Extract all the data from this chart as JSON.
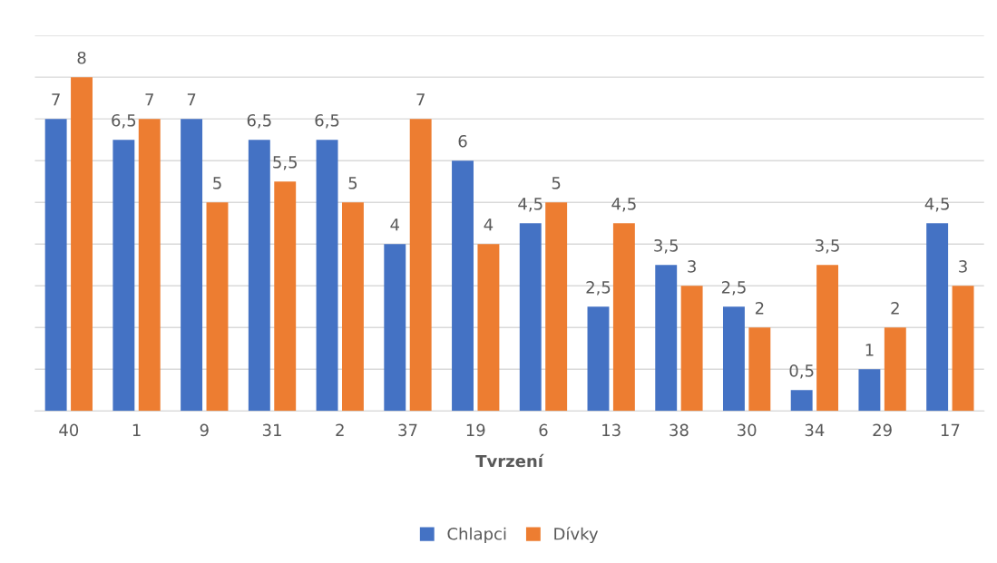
{
  "chart_data": {
    "type": "bar",
    "xlabel": "Tvrzení",
    "categories": [
      "40",
      "1",
      "9",
      "31",
      "2",
      "37",
      "19",
      "6",
      "13",
      "38",
      "30",
      "34",
      "29",
      "17"
    ],
    "series": [
      {
        "name": "Chlapci",
        "color": "#4472c4",
        "values": [
          7,
          6.5,
          7,
          6.5,
          6.5,
          4,
          6,
          4.5,
          2.5,
          3.5,
          2.5,
          0.5,
          1,
          4.5
        ],
        "value_labels": [
          "7",
          "6,5",
          "7",
          "6,5",
          "6,5",
          "4",
          "6",
          "4,5",
          "2,5",
          "3,5",
          "2,5",
          "0,5",
          "1",
          "4,5"
        ]
      },
      {
        "name": "Dívky",
        "color": "#ed7d31",
        "values": [
          8,
          7,
          5,
          5.5,
          5,
          7,
          4,
          5,
          4.5,
          3,
          2,
          3.5,
          2,
          3
        ],
        "value_labels": [
          "8",
          "7",
          "5",
          "5,5",
          "5",
          "7",
          "4",
          "5",
          "4,5",
          "3",
          "2",
          "3,5",
          "2",
          "3"
        ]
      }
    ],
    "ylim": [
      0,
      9
    ],
    "yticks": [
      {
        "value": 0,
        "label": null
      },
      {
        "value": 1,
        "label": null
      },
      {
        "value": 2,
        "label": null
      },
      {
        "value": 3,
        "label": null
      },
      {
        "value": 4,
        "label": null
      },
      {
        "value": 5,
        "label": null
      },
      {
        "value": 6,
        "label": null
      },
      {
        "value": 7,
        "label": null
      },
      {
        "value": 8,
        "label": null
      },
      {
        "value": 9,
        "label": null
      }
    ],
    "tick_labels": "x",
    "grid": "y",
    "legend": "bottom"
  }
}
